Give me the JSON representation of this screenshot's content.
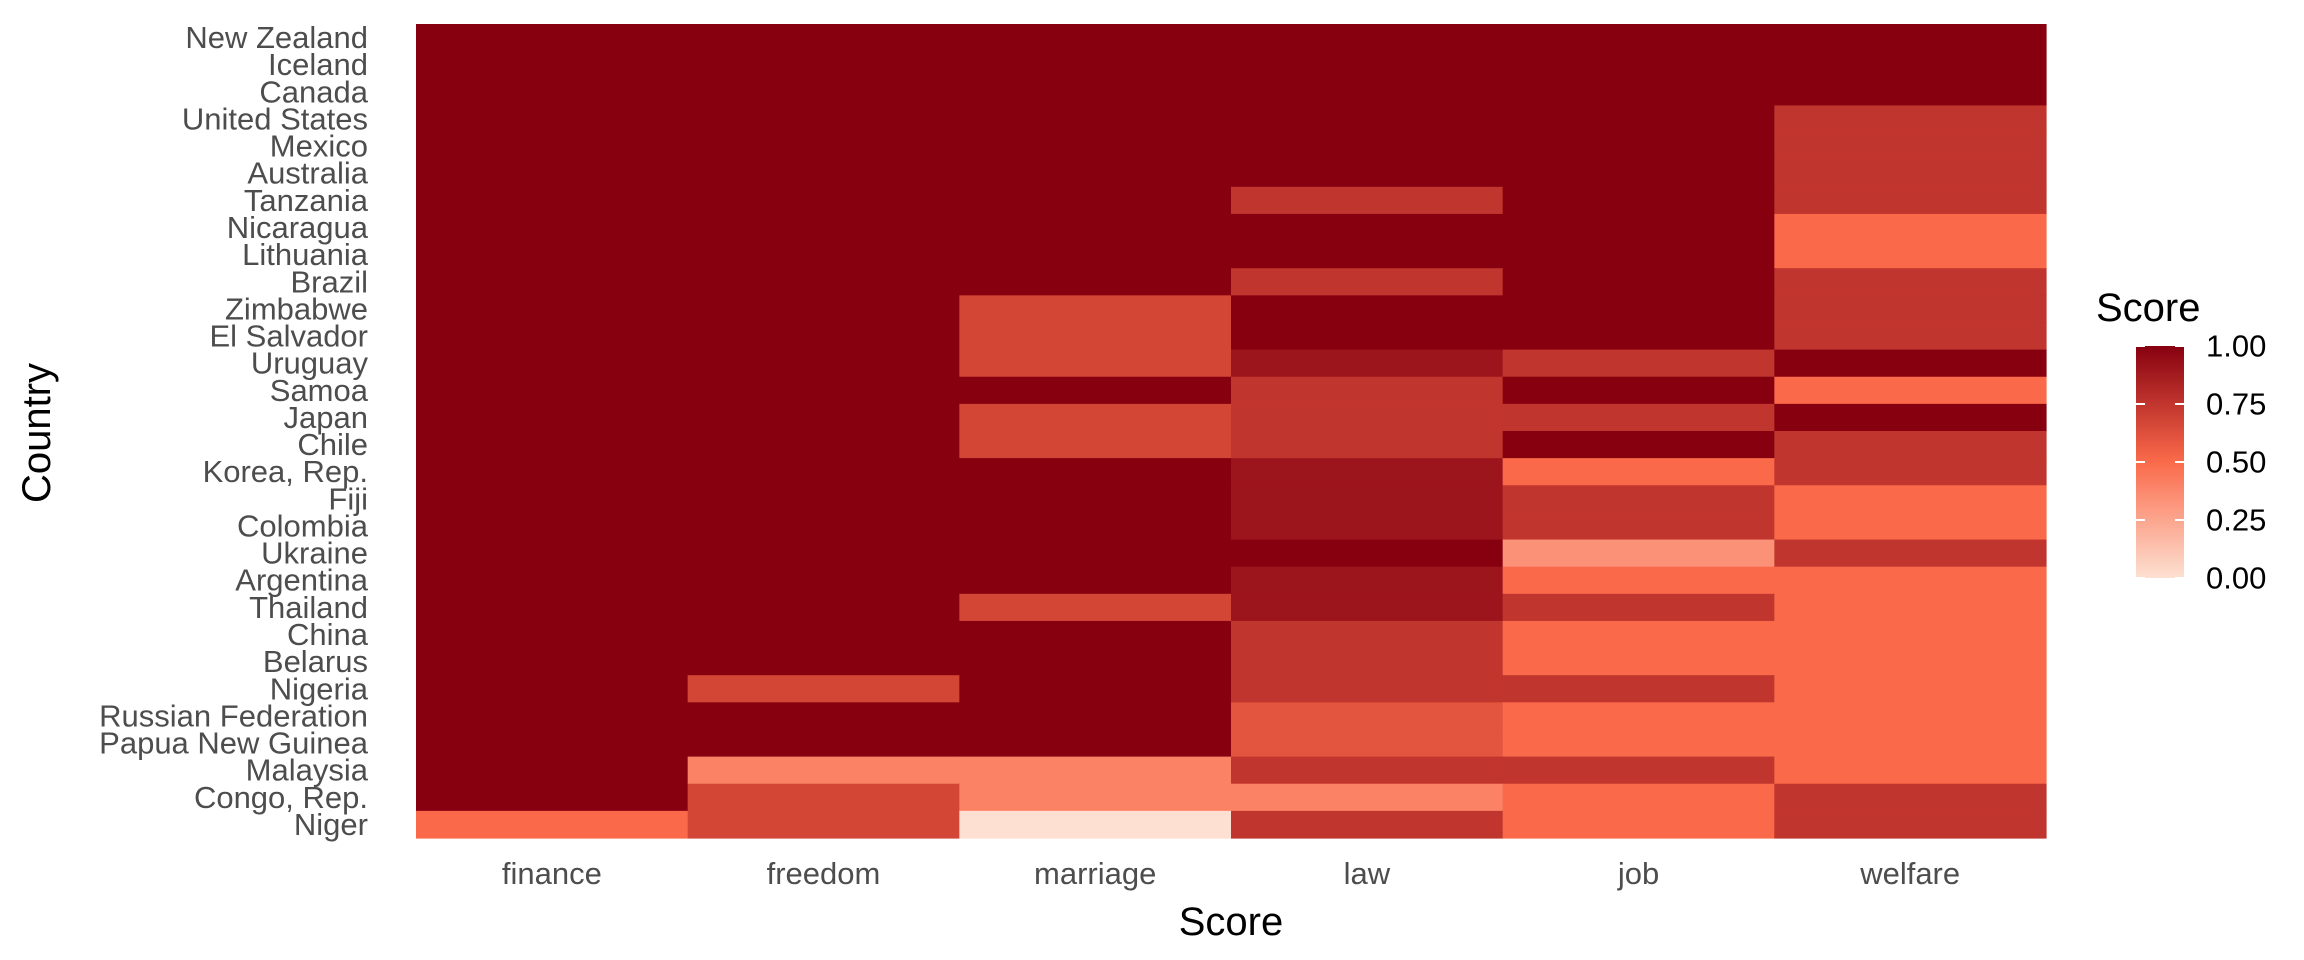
{
  "chart_data": {
    "type": "heatmap",
    "xlabel": "Score",
    "ylabel": "Country",
    "x_categories": [
      "finance",
      "freedom",
      "marriage",
      "law",
      "job",
      "welfare"
    ],
    "y_categories": [
      "New Zealand",
      "Iceland",
      "Canada",
      "United States",
      "Mexico",
      "Australia",
      "Tanzania",
      "Nicaragua",
      "Lithuania",
      "Brazil",
      "Zimbabwe",
      "El Salvador",
      "Uruguay",
      "Samoa",
      "Japan",
      "Chile",
      "Korea, Rep.",
      "Fiji",
      "Colombia",
      "Ukraine",
      "Argentina",
      "Thailand",
      "China",
      "Belarus",
      "Nigeria",
      "Russian Federation",
      "Papua New Guinea",
      "Malaysia",
      "Congo, Rep.",
      "Niger"
    ],
    "values": [
      [
        1,
        1,
        1,
        1,
        1,
        1
      ],
      [
        1,
        1,
        1,
        1,
        1,
        1
      ],
      [
        1,
        1,
        1,
        1,
        1,
        1
      ],
      [
        1,
        1,
        1,
        1,
        1,
        0.75
      ],
      [
        1,
        1,
        1,
        1,
        1,
        0.75
      ],
      [
        1,
        1,
        1,
        1,
        1,
        0.75
      ],
      [
        1,
        1,
        1,
        0.75,
        1,
        0.75
      ],
      [
        1,
        1,
        1,
        1,
        1,
        0.5
      ],
      [
        1,
        1,
        1,
        1,
        1,
        0.5
      ],
      [
        1,
        1,
        1,
        0.75,
        1,
        0.75
      ],
      [
        1,
        1,
        0.67,
        1,
        1,
        0.75
      ],
      [
        1,
        1,
        0.67,
        1,
        1,
        0.75
      ],
      [
        1,
        1,
        0.67,
        0.9,
        0.75,
        1
      ],
      [
        1,
        1,
        1,
        0.75,
        1,
        0.5
      ],
      [
        1,
        1,
        0.67,
        0.75,
        0.75,
        1
      ],
      [
        1,
        1,
        0.67,
        0.75,
        1,
        0.75
      ],
      [
        1,
        1,
        1,
        0.9,
        0.5,
        0.75
      ],
      [
        1,
        1,
        1,
        0.9,
        0.75,
        0.5
      ],
      [
        1,
        1,
        1,
        0.9,
        0.75,
        0.5
      ],
      [
        1,
        1,
        1,
        1,
        0.33,
        0.75
      ],
      [
        1,
        1,
        1,
        0.9,
        0.5,
        0.5
      ],
      [
        1,
        1,
        0.67,
        0.9,
        0.75,
        0.5
      ],
      [
        1,
        1,
        1,
        0.75,
        0.5,
        0.5
      ],
      [
        1,
        1,
        1,
        0.75,
        0.5,
        0.5
      ],
      [
        1,
        0.67,
        1,
        0.75,
        0.75,
        0.5
      ],
      [
        1,
        1,
        1,
        0.6,
        0.5,
        0.5
      ],
      [
        1,
        1,
        1,
        0.6,
        0.5,
        0.5
      ],
      [
        1,
        0.4,
        0.4,
        0.75,
        0.75,
        0.5
      ],
      [
        1,
        0.67,
        0.4,
        0.4,
        0.5,
        0.75
      ],
      [
        0.5,
        0.67,
        0.0,
        0.75,
        0.5,
        0.75
      ]
    ],
    "legend": {
      "title": "Score",
      "ticks": [
        "0.00",
        "0.25",
        "0.50",
        "0.75",
        "1.00"
      ],
      "tick_values": [
        0,
        0.25,
        0.5,
        0.75,
        1
      ],
      "placement": "right"
    },
    "color_scale": {
      "low": "#fde0d2",
      "mid": "#fa6a4a",
      "high": "#860010"
    }
  }
}
